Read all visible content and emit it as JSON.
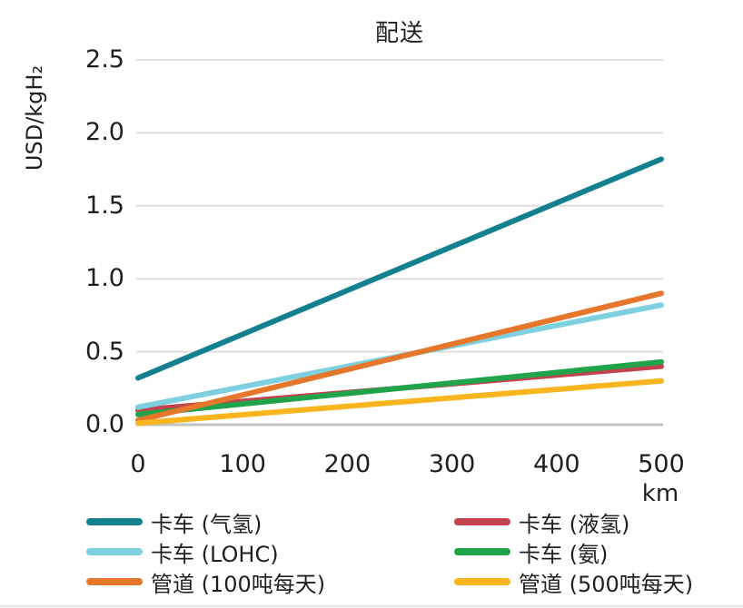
{
  "page": {
    "background": "#ffffff",
    "text_color": "#1f1f1f"
  },
  "chart_data": {
    "type": "line",
    "title": "配送",
    "xlabel": "km",
    "ylabel": "USD/kgH₂",
    "x": [
      0,
      500
    ],
    "xlim": [
      0,
      500
    ],
    "ylim": [
      0,
      2.5
    ],
    "x_tick_values": [
      0,
      100,
      200,
      300,
      400,
      500
    ],
    "x_tick_labels": [
      "0",
      "100",
      "200",
      "300",
      "400",
      "500"
    ],
    "y_tick_values": [
      0,
      0.5,
      1.0,
      1.5,
      2.0,
      2.5
    ],
    "y_tick_labels": [
      "0.0",
      "0.5",
      "1.0",
      "1.5",
      "2.0",
      "2.5"
    ],
    "grid": true,
    "gridline_color": "#dedede",
    "axis_line_color": "#c2c2c2",
    "legend_position": "bottom",
    "legend_columns": 2,
    "series": [
      {
        "name": "卡车 (气氢)",
        "color": "#12808f",
        "values": [
          0.32,
          1.82
        ]
      },
      {
        "name": "卡车 (液氢)",
        "color": "#c2424d",
        "values": [
          0.1,
          0.4
        ]
      },
      {
        "name": "卡车 (LOHC)",
        "color": "#7ed0e1",
        "values": [
          0.12,
          0.82
        ]
      },
      {
        "name": "卡车 (氨)",
        "color": "#1fa44a",
        "values": [
          0.07,
          0.43
        ]
      },
      {
        "name": "管道 (100吨每天)",
        "color": "#e6762a",
        "values": [
          0.03,
          0.9
        ]
      },
      {
        "name": "管道 (500吨每天)",
        "color": "#f9b51d",
        "values": [
          0.01,
          0.3
        ]
      }
    ]
  }
}
